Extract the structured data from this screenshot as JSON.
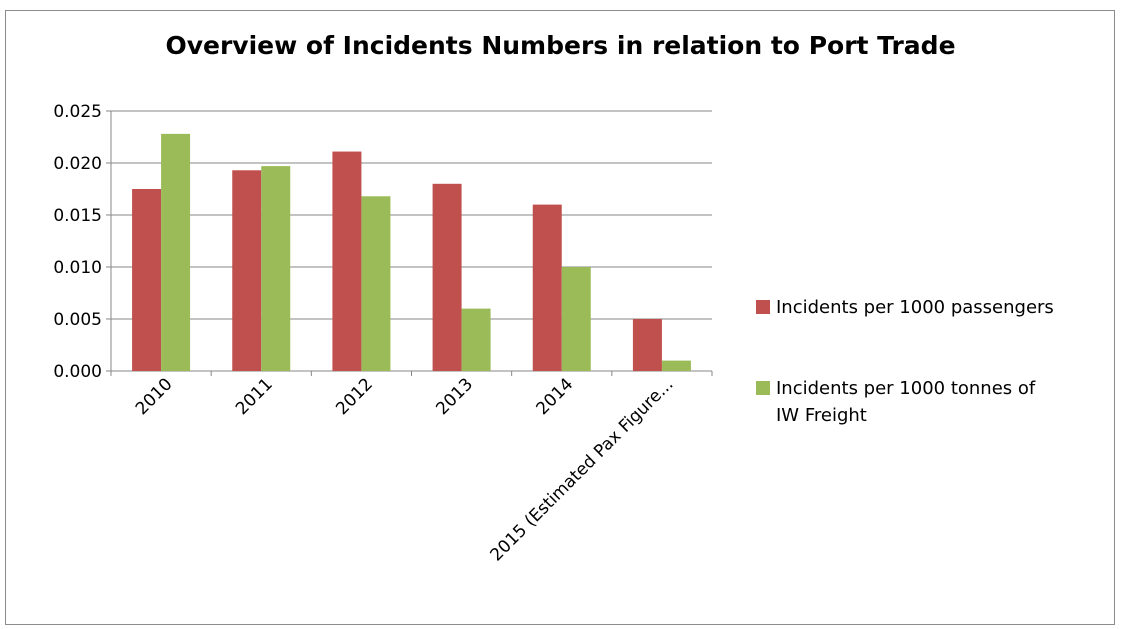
{
  "chart_data": {
    "type": "bar",
    "title": "Overview of Incidents Numbers in relation to Port Trade",
    "xlabel": "",
    "ylabel": "",
    "categories": [
      "2010",
      "2011",
      "2012",
      "2013",
      "2014",
      "2015 (Estimated Pax Figure..."
    ],
    "series": [
      {
        "name": "Incidents per 1000 passengers",
        "color": "#c0504d",
        "values": [
          0.0175,
          0.0193,
          0.0211,
          0.018,
          0.016,
          0.005
        ]
      },
      {
        "name": "Incidents per 1000 tonnes of IW Freight",
        "color": "#9bbb59",
        "values": [
          0.0228,
          0.0197,
          0.0168,
          0.006,
          0.01,
          0.001
        ]
      }
    ],
    "ylim": [
      0,
      0.025
    ],
    "yticks": [
      "0.000",
      "0.005",
      "0.010",
      "0.015",
      "0.020",
      "0.025"
    ],
    "grid": true,
    "legend_position": "right"
  },
  "legend": {
    "items": [
      {
        "lines": [
          "Incidents per 1000 passengers"
        ]
      },
      {
        "lines": [
          "Incidents per 1000 tonnes of",
          "IW Freight"
        ]
      }
    ]
  }
}
